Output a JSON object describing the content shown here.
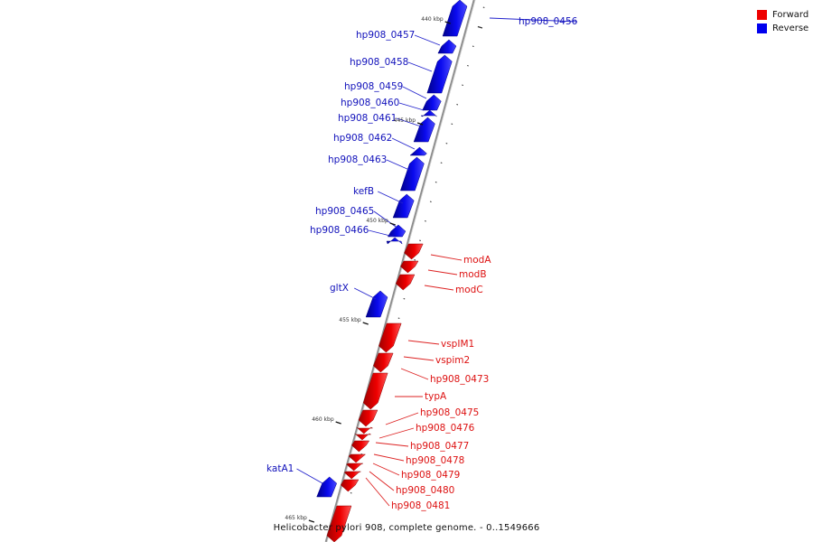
{
  "colors": {
    "forward": "#ee0000",
    "reverse": "#0000ee",
    "backbone": "#888888",
    "label_forward": "#dd1111",
    "label_reverse": "#1111bb"
  },
  "legend": {
    "forward": "Forward",
    "reverse": "Reverse"
  },
  "caption": "Helicobacter pylori 908, complete genome. - 0..1549666",
  "kbp_labels": [
    "440 kbp",
    "445 kbp",
    "450 kbp",
    "455 kbp",
    "460 kbp",
    "465 kbp"
  ],
  "genes": [
    {
      "name": "hp908_0456",
      "strand": "reverse"
    },
    {
      "name": "hp908_0457",
      "strand": "reverse"
    },
    {
      "name": "hp908_0458",
      "strand": "reverse"
    },
    {
      "name": "hp908_0459",
      "strand": "reverse"
    },
    {
      "name": "hp908_0460",
      "strand": "reverse"
    },
    {
      "name": "hp908_0461",
      "strand": "reverse"
    },
    {
      "name": "hp908_0462",
      "strand": "reverse"
    },
    {
      "name": "hp908_0463",
      "strand": "reverse"
    },
    {
      "name": "kefB",
      "strand": "reverse"
    },
    {
      "name": "hp908_0465",
      "strand": "reverse"
    },
    {
      "name": "hp908_0466",
      "strand": "reverse"
    },
    {
      "name": "modA",
      "strand": "forward"
    },
    {
      "name": "modB",
      "strand": "forward"
    },
    {
      "name": "modC",
      "strand": "forward"
    },
    {
      "name": "gltX",
      "strand": "reverse"
    },
    {
      "name": "vspIM1",
      "strand": "forward"
    },
    {
      "name": "vspim2",
      "strand": "forward"
    },
    {
      "name": "hp908_0473",
      "strand": "forward"
    },
    {
      "name": "typA",
      "strand": "forward"
    },
    {
      "name": "hp908_0475",
      "strand": "forward"
    },
    {
      "name": "hp908_0476",
      "strand": "forward"
    },
    {
      "name": "hp908_0477",
      "strand": "forward"
    },
    {
      "name": "hp908_0478",
      "strand": "forward"
    },
    {
      "name": "hp908_0479",
      "strand": "forward"
    },
    {
      "name": "hp908_0480",
      "strand": "forward"
    },
    {
      "name": "hp908_0481",
      "strand": "forward"
    },
    {
      "name": "katA1",
      "strand": "reverse"
    },
    {
      "name": "",
      "strand": "forward"
    }
  ]
}
